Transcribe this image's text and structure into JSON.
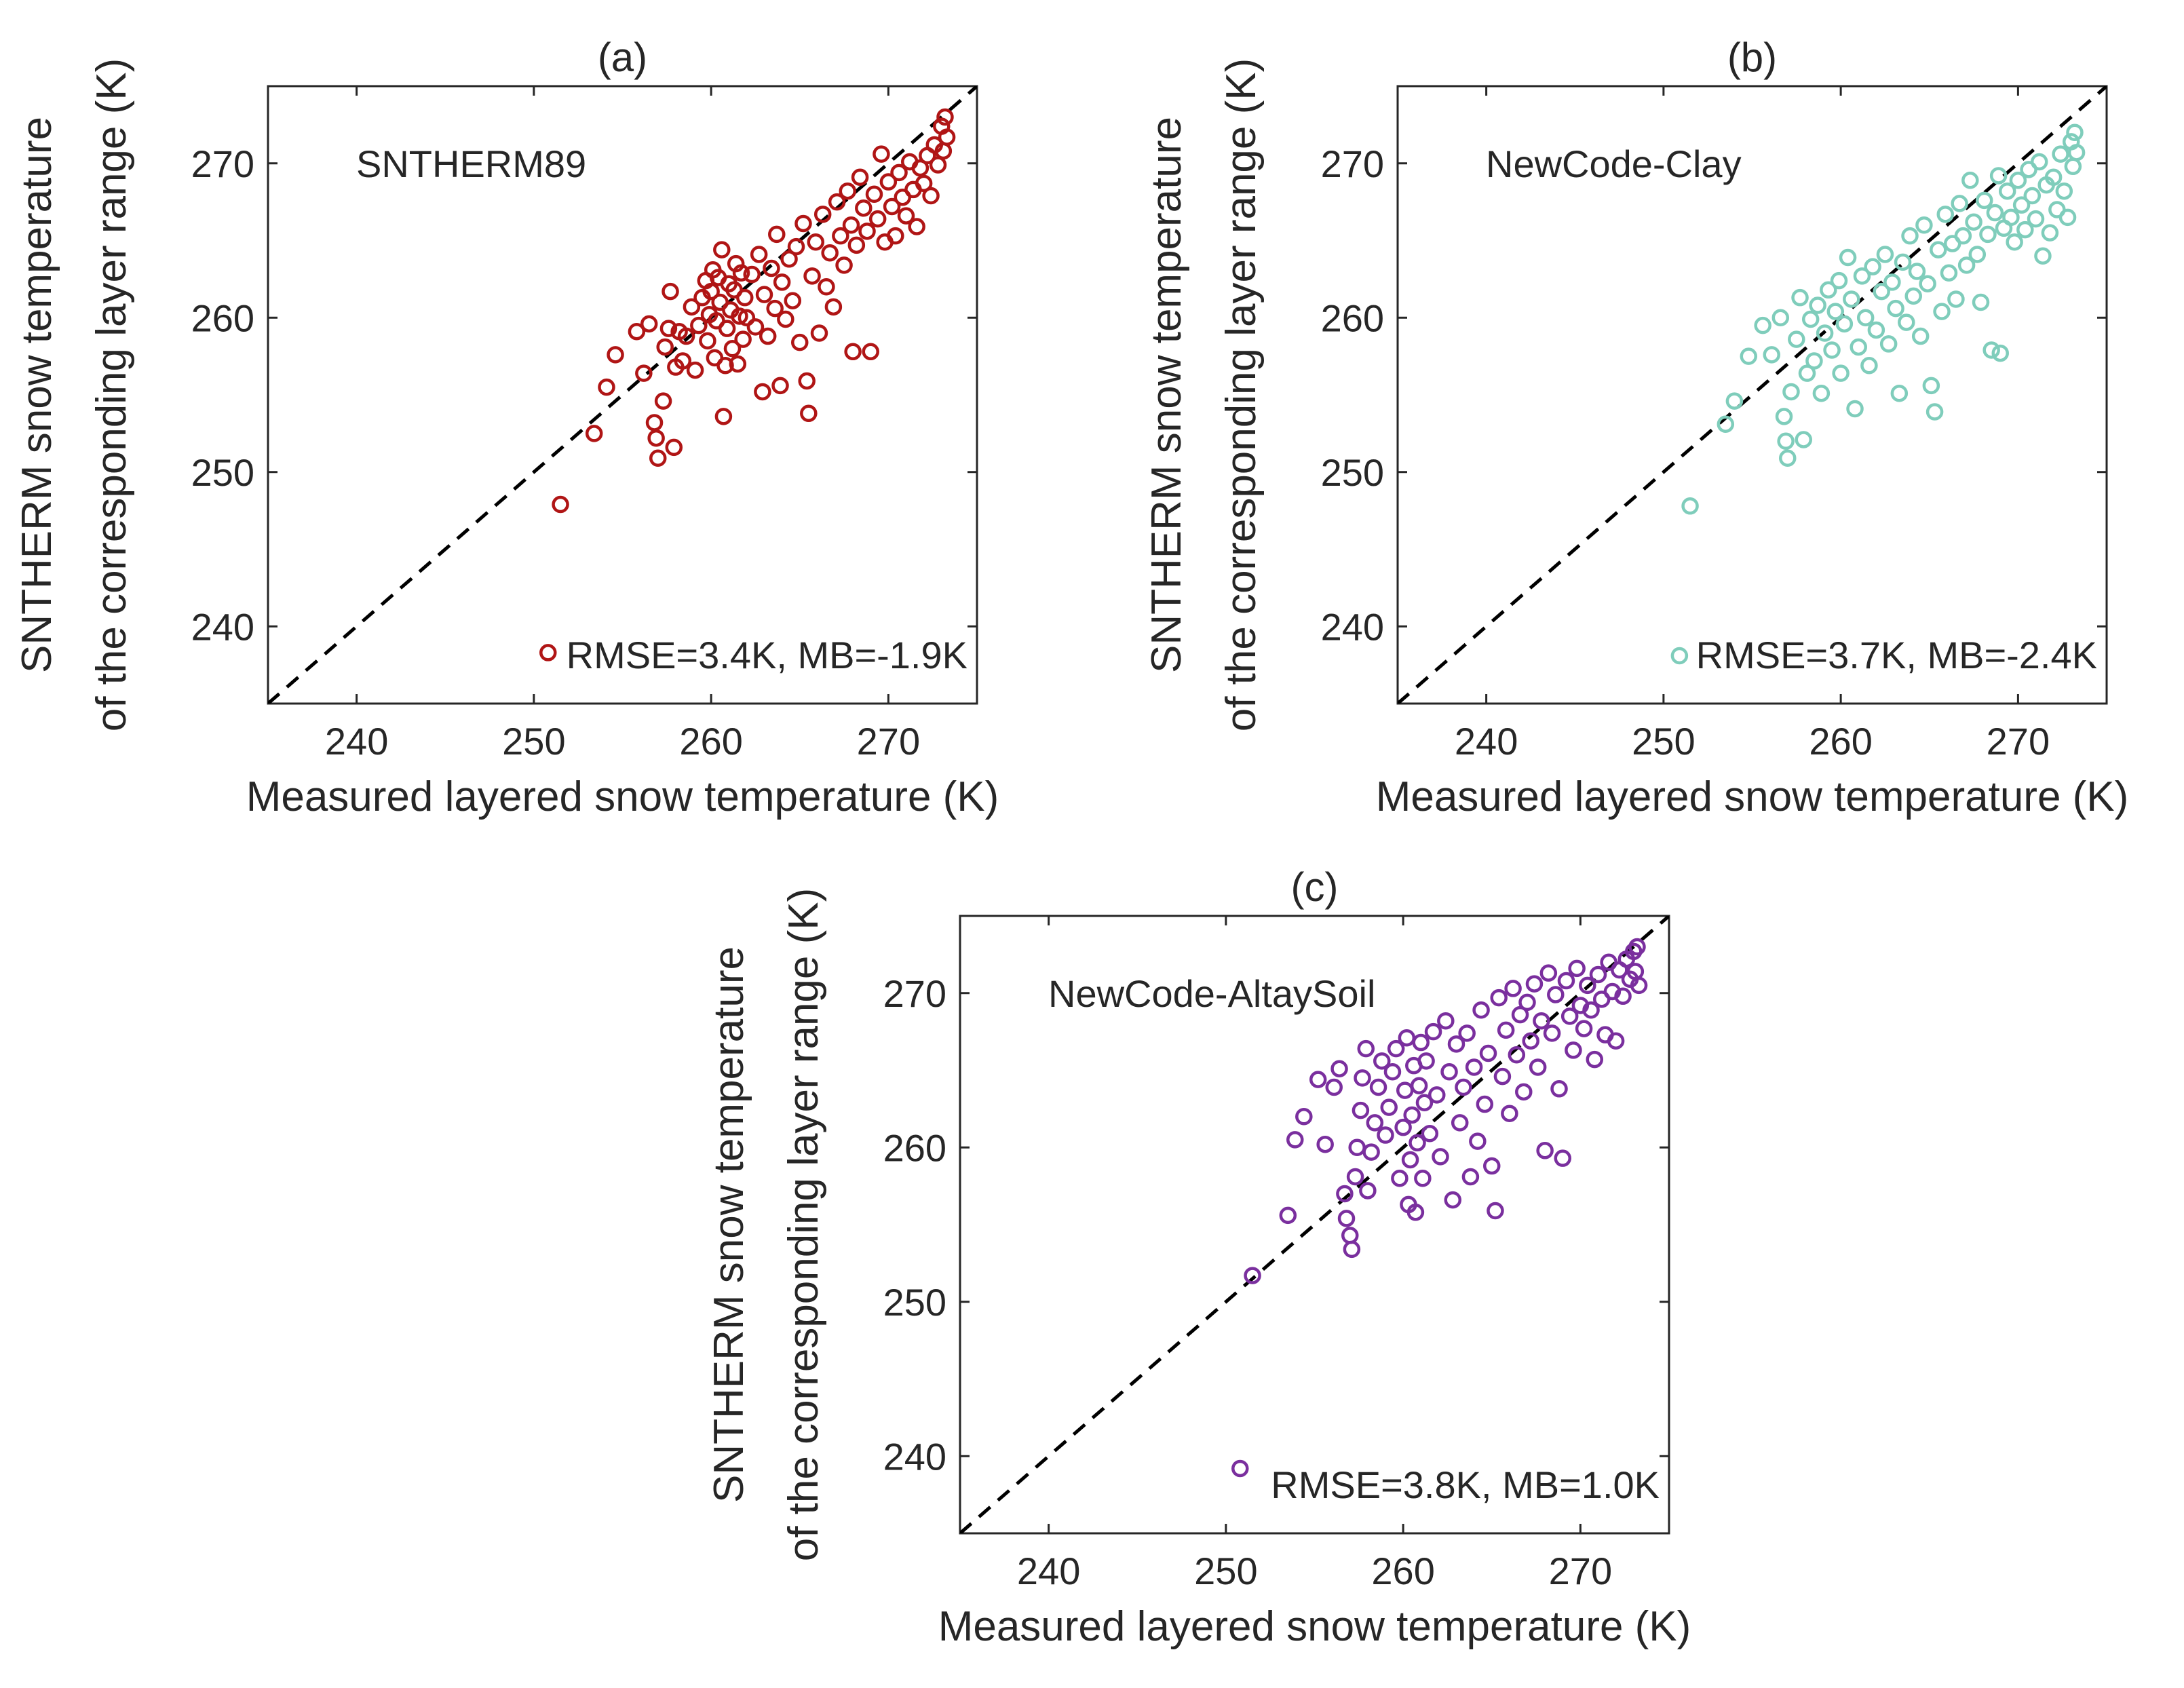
{
  "chart_data": [
    {
      "type": "scatter",
      "panel": "(a)",
      "model": "SNTHERM89",
      "stats": "RMSE=3.4K, MB=-1.9K",
      "color": "#b01515",
      "xlabel": "Measured layered snow temperature (K)",
      "ylabel_line1": "SNTHERM snow temperature",
      "ylabel_line2": "of the corresponding layer range (K)",
      "xlim": [
        235,
        275
      ],
      "ylim": [
        235,
        275
      ],
      "xticks": [
        240,
        250,
        260,
        270
      ],
      "yticks": [
        240,
        250,
        260,
        270
      ],
      "reference_line": "1:1 dashed",
      "points": [
        [
          250.8,
          238.3
        ],
        [
          251.5,
          247.9
        ],
        [
          253.4,
          252.5
        ],
        [
          254.1,
          255.5
        ],
        [
          254.6,
          257.6
        ],
        [
          255.8,
          259.1
        ],
        [
          256.2,
          256.4
        ],
        [
          256.5,
          259.6
        ],
        [
          256.8,
          253.2
        ],
        [
          256.9,
          252.2
        ],
        [
          257.0,
          250.9
        ],
        [
          257.3,
          254.6
        ],
        [
          257.4,
          258.1
        ],
        [
          257.6,
          259.3
        ],
        [
          257.7,
          261.7
        ],
        [
          257.9,
          251.6
        ],
        [
          258.0,
          256.8
        ],
        [
          258.2,
          259.1
        ],
        [
          258.4,
          257.2
        ],
        [
          258.6,
          258.8
        ],
        [
          258.9,
          260.7
        ],
        [
          259.1,
          256.6
        ],
        [
          259.3,
          259.5
        ],
        [
          259.5,
          261.3
        ],
        [
          259.7,
          262.4
        ],
        [
          259.8,
          258.5
        ],
        [
          259.9,
          260.2
        ],
        [
          260.0,
          261.7
        ],
        [
          260.1,
          263.1
        ],
        [
          260.2,
          257.4
        ],
        [
          260.3,
          259.8
        ],
        [
          260.4,
          262.6
        ],
        [
          260.5,
          261.0
        ],
        [
          260.6,
          264.4
        ],
        [
          260.7,
          253.6
        ],
        [
          260.8,
          256.9
        ],
        [
          260.9,
          259.3
        ],
        [
          261.0,
          262.2
        ],
        [
          261.1,
          260.5
        ],
        [
          261.2,
          258.0
        ],
        [
          261.3,
          261.8
        ],
        [
          261.4,
          263.5
        ],
        [
          261.5,
          257.0
        ],
        [
          261.6,
          260.1
        ],
        [
          261.7,
          262.9
        ],
        [
          261.8,
          258.6
        ],
        [
          261.9,
          261.3
        ],
        [
          262.0,
          260.0
        ],
        [
          262.3,
          262.8
        ],
        [
          262.5,
          259.4
        ],
        [
          262.7,
          264.1
        ],
        [
          262.9,
          255.2
        ],
        [
          263.0,
          261.5
        ],
        [
          263.2,
          258.8
        ],
        [
          263.4,
          263.2
        ],
        [
          263.6,
          260.6
        ],
        [
          263.7,
          265.4
        ],
        [
          263.9,
          255.6
        ],
        [
          264.0,
          262.3
        ],
        [
          264.2,
          259.9
        ],
        [
          264.4,
          263.8
        ],
        [
          264.6,
          261.1
        ],
        [
          264.8,
          264.6
        ],
        [
          265.0,
          258.4
        ],
        [
          265.2,
          266.1
        ],
        [
          265.4,
          255.9
        ],
        [
          265.5,
          253.8
        ],
        [
          265.7,
          262.7
        ],
        [
          265.9,
          264.9
        ],
        [
          266.1,
          259.0
        ],
        [
          266.3,
          266.7
        ],
        [
          266.5,
          262.0
        ],
        [
          266.7,
          264.2
        ],
        [
          266.9,
          260.7
        ],
        [
          267.1,
          267.5
        ],
        [
          267.3,
          265.3
        ],
        [
          267.5,
          263.4
        ],
        [
          267.7,
          268.2
        ],
        [
          267.9,
          266.0
        ],
        [
          268.0,
          257.8
        ],
        [
          268.2,
          264.7
        ],
        [
          268.4,
          269.1
        ],
        [
          268.6,
          267.1
        ],
        [
          268.8,
          265.6
        ],
        [
          269.0,
          257.8
        ],
        [
          269.2,
          268.0
        ],
        [
          269.4,
          266.4
        ],
        [
          269.6,
          270.6
        ],
        [
          269.8,
          264.9
        ],
        [
          270.0,
          268.8
        ],
        [
          270.2,
          267.2
        ],
        [
          270.4,
          265.3
        ],
        [
          270.6,
          269.4
        ],
        [
          270.8,
          267.8
        ],
        [
          271.0,
          266.6
        ],
        [
          271.2,
          270.1
        ],
        [
          271.4,
          268.3
        ],
        [
          271.6,
          265.9
        ],
        [
          271.8,
          269.7
        ],
        [
          272.0,
          268.7
        ],
        [
          272.2,
          270.5
        ],
        [
          272.4,
          267.9
        ],
        [
          272.6,
          271.2
        ],
        [
          272.8,
          269.9
        ],
        [
          273.0,
          272.4
        ],
        [
          273.1,
          270.8
        ],
        [
          273.2,
          273.0
        ],
        [
          273.3,
          271.7
        ]
      ]
    },
    {
      "type": "scatter",
      "panel": "(b)",
      "model": "NewCode-Clay",
      "stats": "RMSE=3.7K, MB=-2.4K",
      "color": "#7fcdbb",
      "xlabel": "Measured layered snow temperature (K)",
      "ylabel_line1": "SNTHERM snow temperature",
      "ylabel_line2": "of the corresponding layer range (K)",
      "xlim": [
        235,
        275
      ],
      "ylim": [
        235,
        275
      ],
      "xticks": [
        240,
        250,
        260,
        270
      ],
      "yticks": [
        240,
        250,
        260,
        270
      ],
      "reference_line": "1:1 dashed",
      "points": [
        [
          250.9,
          238.1
        ],
        [
          251.5,
          247.8
        ],
        [
          253.5,
          253.1
        ],
        [
          254.0,
          254.6
        ],
        [
          254.8,
          257.5
        ],
        [
          255.6,
          259.5
        ],
        [
          256.1,
          257.6
        ],
        [
          256.6,
          260.0
        ],
        [
          256.8,
          253.6
        ],
        [
          256.9,
          252.0
        ],
        [
          257.0,
          250.9
        ],
        [
          257.2,
          255.2
        ],
        [
          257.5,
          258.6
        ],
        [
          257.7,
          261.3
        ],
        [
          257.9,
          252.1
        ],
        [
          258.1,
          256.4
        ],
        [
          258.3,
          259.9
        ],
        [
          258.5,
          257.2
        ],
        [
          258.7,
          260.8
        ],
        [
          258.9,
          255.1
        ],
        [
          259.1,
          259.0
        ],
        [
          259.3,
          261.8
        ],
        [
          259.5,
          257.9
        ],
        [
          259.7,
          260.4
        ],
        [
          259.9,
          262.4
        ],
        [
          260.0,
          256.4
        ],
        [
          260.2,
          259.6
        ],
        [
          260.4,
          263.9
        ],
        [
          260.6,
          261.2
        ],
        [
          260.8,
          254.1
        ],
        [
          261.0,
          258.1
        ],
        [
          261.2,
          262.7
        ],
        [
          261.4,
          260.0
        ],
        [
          261.6,
          256.9
        ],
        [
          261.8,
          263.3
        ],
        [
          262.0,
          259.2
        ],
        [
          262.3,
          261.7
        ],
        [
          262.5,
          264.1
        ],
        [
          262.7,
          258.3
        ],
        [
          262.9,
          262.3
        ],
        [
          263.1,
          260.6
        ],
        [
          263.3,
          255.1
        ],
        [
          263.5,
          263.6
        ],
        [
          263.7,
          259.7
        ],
        [
          263.9,
          265.3
        ],
        [
          264.1,
          261.4
        ],
        [
          264.3,
          263.0
        ],
        [
          264.5,
          258.8
        ],
        [
          264.7,
          266.0
        ],
        [
          264.9,
          262.2
        ],
        [
          265.1,
          255.6
        ],
        [
          265.3,
          253.9
        ],
        [
          265.5,
          264.4
        ],
        [
          265.7,
          260.4
        ],
        [
          265.9,
          266.7
        ],
        [
          266.1,
          262.9
        ],
        [
          266.3,
          264.8
        ],
        [
          266.5,
          261.2
        ],
        [
          266.7,
          267.4
        ],
        [
          266.9,
          265.3
        ],
        [
          267.1,
          263.4
        ],
        [
          267.3,
          268.9
        ],
        [
          267.5,
          266.2
        ],
        [
          267.7,
          264.1
        ],
        [
          267.9,
          261.0
        ],
        [
          268.1,
          267.6
        ],
        [
          268.3,
          265.4
        ],
        [
          268.5,
          257.9
        ],
        [
          268.7,
          266.8
        ],
        [
          268.9,
          269.2
        ],
        [
          269.0,
          257.7
        ],
        [
          269.2,
          265.8
        ],
        [
          269.4,
          268.2
        ],
        [
          269.6,
          266.5
        ],
        [
          269.8,
          264.9
        ],
        [
          270.0,
          268.9
        ],
        [
          270.2,
          267.3
        ],
        [
          270.4,
          265.7
        ],
        [
          270.6,
          269.6
        ],
        [
          270.8,
          267.9
        ],
        [
          271.0,
          266.4
        ],
        [
          271.2,
          270.1
        ],
        [
          271.4,
          264.0
        ],
        [
          271.6,
          268.6
        ],
        [
          271.8,
          265.5
        ],
        [
          272.0,
          269.1
        ],
        [
          272.2,
          267.0
        ],
        [
          272.4,
          270.6
        ],
        [
          272.6,
          268.2
        ],
        [
          272.8,
          266.5
        ],
        [
          273.0,
          271.4
        ],
        [
          273.1,
          269.8
        ],
        [
          273.2,
          272.0
        ],
        [
          273.3,
          270.7
        ]
      ]
    },
    {
      "type": "scatter",
      "panel": "(c)",
      "model": "NewCode-AltaySoil",
      "stats": "RMSE=3.8K, MB=1.0K",
      "color": "#7a2f9e",
      "xlabel": "Measured layered snow temperature (K)",
      "ylabel_line1": "SNTHERM snow temperature",
      "ylabel_line2": "of the corresponding layer range (K)",
      "xlim": [
        235,
        275
      ],
      "ylim": [
        235,
        275
      ],
      "xticks": [
        240,
        250,
        260,
        270
      ],
      "yticks": [
        240,
        250,
        260,
        270
      ],
      "reference_line": "1:1 dashed",
      "points": [
        [
          250.8,
          239.2
        ],
        [
          251.5,
          251.7
        ],
        [
          253.5,
          255.6
        ],
        [
          253.9,
          260.5
        ],
        [
          254.4,
          262.0
        ],
        [
          255.2,
          264.4
        ],
        [
          255.6,
          260.2
        ],
        [
          256.1,
          263.9
        ],
        [
          256.4,
          265.1
        ],
        [
          256.7,
          257.0
        ],
        [
          256.8,
          255.4
        ],
        [
          257.0,
          254.3
        ],
        [
          257.1,
          253.4
        ],
        [
          257.3,
          258.1
        ],
        [
          257.4,
          260.0
        ],
        [
          257.6,
          262.4
        ],
        [
          257.7,
          264.5
        ],
        [
          257.9,
          266.4
        ],
        [
          258.0,
          257.2
        ],
        [
          258.2,
          259.7
        ],
        [
          258.4,
          261.6
        ],
        [
          258.6,
          263.9
        ],
        [
          258.8,
          265.6
        ],
        [
          259.0,
          260.8
        ],
        [
          259.2,
          262.6
        ],
        [
          259.4,
          264.9
        ],
        [
          259.6,
          266.4
        ],
        [
          259.8,
          258.0
        ],
        [
          260.0,
          261.3
        ],
        [
          260.1,
          263.7
        ],
        [
          260.2,
          267.1
        ],
        [
          260.3,
          256.3
        ],
        [
          260.4,
          259.2
        ],
        [
          260.5,
          262.1
        ],
        [
          260.6,
          265.3
        ],
        [
          260.7,
          255.8
        ],
        [
          260.8,
          260.3
        ],
        [
          260.9,
          264.0
        ],
        [
          261.0,
          266.8
        ],
        [
          261.1,
          258.0
        ],
        [
          261.2,
          262.9
        ],
        [
          261.3,
          265.6
        ],
        [
          261.5,
          260.9
        ],
        [
          261.7,
          267.5
        ],
        [
          261.9,
          263.4
        ],
        [
          262.1,
          259.4
        ],
        [
          262.4,
          268.2
        ],
        [
          262.6,
          264.9
        ],
        [
          262.8,
          256.6
        ],
        [
          263.0,
          266.7
        ],
        [
          263.2,
          261.6
        ],
        [
          263.4,
          263.9
        ],
        [
          263.6,
          267.4
        ],
        [
          263.8,
          258.1
        ],
        [
          264.0,
          265.2
        ],
        [
          264.2,
          260.4
        ],
        [
          264.4,
          268.9
        ],
        [
          264.6,
          262.8
        ],
        [
          264.8,
          266.1
        ],
        [
          265.0,
          258.8
        ],
        [
          265.2,
          255.9
        ],
        [
          265.4,
          269.7
        ],
        [
          265.6,
          264.6
        ],
        [
          265.8,
          267.6
        ],
        [
          266.0,
          262.2
        ],
        [
          266.2,
          270.3
        ],
        [
          266.4,
          266.0
        ],
        [
          266.6,
          268.6
        ],
        [
          266.8,
          263.6
        ],
        [
          267.0,
          269.4
        ],
        [
          267.2,
          266.9
        ],
        [
          267.4,
          270.6
        ],
        [
          267.6,
          265.2
        ],
        [
          267.8,
          268.2
        ],
        [
          268.0,
          259.8
        ],
        [
          268.2,
          271.3
        ],
        [
          268.4,
          267.4
        ],
        [
          268.6,
          269.9
        ],
        [
          268.8,
          263.8
        ],
        [
          269.0,
          259.3
        ],
        [
          269.2,
          270.8
        ],
        [
          269.4,
          268.5
        ],
        [
          269.6,
          266.3
        ],
        [
          269.8,
          271.6
        ],
        [
          270.0,
          269.2
        ],
        [
          270.2,
          267.7
        ],
        [
          270.4,
          270.5
        ],
        [
          270.6,
          268.9
        ],
        [
          270.8,
          265.7
        ],
        [
          271.0,
          271.2
        ],
        [
          271.2,
          269.6
        ],
        [
          271.4,
          267.3
        ],
        [
          271.6,
          272.0
        ],
        [
          271.8,
          270.1
        ],
        [
          272.0,
          266.9
        ],
        [
          272.2,
          271.5
        ],
        [
          272.4,
          269.8
        ],
        [
          272.6,
          272.2
        ],
        [
          272.8,
          270.9
        ],
        [
          273.0,
          272.7
        ],
        [
          273.1,
          271.4
        ],
        [
          273.2,
          273.0
        ],
        [
          273.3,
          270.5
        ]
      ]
    }
  ]
}
